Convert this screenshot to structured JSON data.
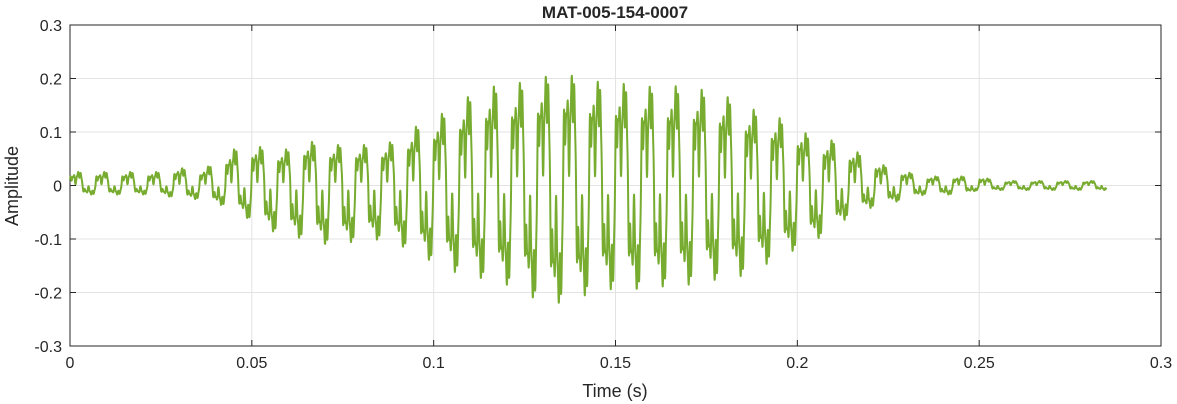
{
  "chart_data": {
    "type": "line",
    "title": "MAT-005-154-0007",
    "xlabel": "Time (s)",
    "ylabel": "Amplitude",
    "xlim": [
      0,
      0.3
    ],
    "ylim": [
      -0.3,
      0.3
    ],
    "xticks": [
      0,
      0.05,
      0.1,
      0.15,
      0.2,
      0.25,
      0.3
    ],
    "xtick_labels": [
      "0",
      "0.05",
      "0.1",
      "0.15",
      "0.2",
      "0.25",
      "0.3"
    ],
    "yticks": [
      -0.3,
      -0.2,
      -0.1,
      0,
      0.1,
      0.2,
      0.3
    ],
    "ytick_labels": [
      "-0.3",
      "-0.2",
      "-0.1",
      "0",
      "0.1",
      "0.2",
      "0.3"
    ],
    "grid": true,
    "line_color": "#77AC30",
    "series": [
      {
        "x": [
          0,
          0.005,
          0.01,
          0.015,
          0.02,
          0.025,
          0.03,
          0.035,
          0.04,
          0.045,
          0.05,
          0.055,
          0.06,
          0.065,
          0.07,
          0.075,
          0.08,
          0.085,
          0.09,
          0.095,
          0.1,
          0.105,
          0.11,
          0.115,
          0.12,
          0.125,
          0.13,
          0.135,
          0.14,
          0.145,
          0.15,
          0.155,
          0.16,
          0.165,
          0.17,
          0.175,
          0.18,
          0.185,
          0.19,
          0.195,
          0.2,
          0.205,
          0.21,
          0.215,
          0.22,
          0.225,
          0.23,
          0.235,
          0.24,
          0.245,
          0.25,
          0.255,
          0.26,
          0.265,
          0.27,
          0.275,
          0.28,
          0.285
        ],
        "y_max": [
          0.03,
          0.03,
          0.03,
          0.03,
          0.03,
          0.03,
          0.04,
          0.03,
          0.05,
          0.08,
          0.09,
          0.08,
          0.08,
          0.1,
          0.09,
          0.09,
          0.09,
          0.09,
          0.1,
          0.13,
          0.15,
          0.17,
          0.2,
          0.22,
          0.22,
          0.23,
          0.24,
          0.25,
          0.24,
          0.23,
          0.23,
          0.22,
          0.22,
          0.22,
          0.22,
          0.21,
          0.2,
          0.18,
          0.16,
          0.15,
          0.13,
          0.1,
          0.1,
          0.08,
          0.06,
          0.04,
          0.03,
          0.02,
          0.02,
          0.02,
          0.02,
          0.01,
          0.01,
          0.01,
          0.01,
          0.01,
          0.01,
          0.01
        ],
        "y_min": [
          -0.02,
          -0.02,
          -0.02,
          -0.02,
          -0.02,
          -0.02,
          -0.03,
          -0.03,
          -0.04,
          -0.05,
          -0.08,
          -0.1,
          -0.11,
          -0.12,
          -0.13,
          -0.13,
          -0.12,
          -0.12,
          -0.13,
          -0.15,
          -0.17,
          -0.19,
          -0.2,
          -0.21,
          -0.22,
          -0.23,
          -0.27,
          -0.26,
          -0.25,
          -0.23,
          -0.23,
          -0.23,
          -0.23,
          -0.22,
          -0.22,
          -0.21,
          -0.21,
          -0.2,
          -0.18,
          -0.16,
          -0.14,
          -0.12,
          -0.1,
          -0.06,
          -0.05,
          -0.04,
          -0.03,
          -0.02,
          -0.02,
          -0.02,
          -0.01,
          -0.01,
          -0.01,
          -0.01,
          -0.01,
          -0.01,
          -0.01,
          -0.01
        ]
      }
    ]
  }
}
